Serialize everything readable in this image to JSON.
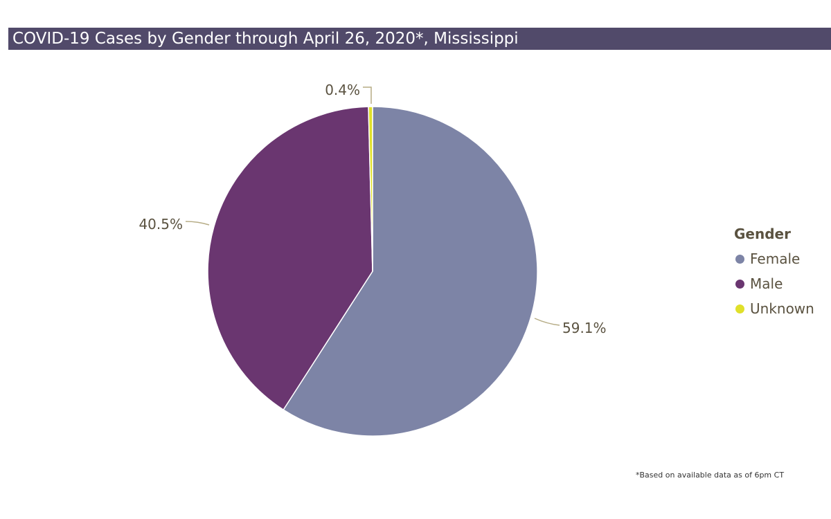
{
  "title": "COVID-19 Cases by Gender through April 26, 2020*, Mississippi",
  "footnote": "*Based on available data as of 6pm CT",
  "chart_data": {
    "type": "pie",
    "legend_title": "Gender",
    "legend_position": "right",
    "slices": [
      {
        "name": "Female",
        "value": 59.1,
        "label": "59.1%",
        "color": "#7d84a6"
      },
      {
        "name": "Male",
        "value": 40.5,
        "label": "40.5%",
        "color": "#6a3670"
      },
      {
        "name": "Unknown",
        "value": 0.4,
        "label": "0.4%",
        "color": "#e0e02a"
      }
    ]
  },
  "colors": {
    "title_bar": "#514a6a",
    "label_text": "#5a5240",
    "leader_line": "#b5ab84"
  }
}
